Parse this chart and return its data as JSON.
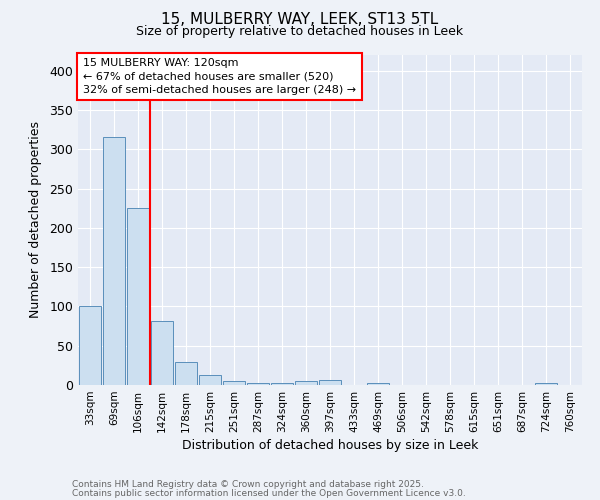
{
  "title_line1": "15, MULBERRY WAY, LEEK, ST13 5TL",
  "title_line2": "Size of property relative to detached houses in Leek",
  "xlabel": "Distribution of detached houses by size in Leek",
  "ylabel": "Number of detached properties",
  "categories": [
    "33sqm",
    "69sqm",
    "106sqm",
    "142sqm",
    "178sqm",
    "215sqm",
    "251sqm",
    "287sqm",
    "324sqm",
    "360sqm",
    "397sqm",
    "433sqm",
    "469sqm",
    "506sqm",
    "542sqm",
    "578sqm",
    "615sqm",
    "651sqm",
    "687sqm",
    "724sqm",
    "760sqm"
  ],
  "values": [
    100,
    315,
    225,
    82,
    29,
    13,
    5,
    3,
    2,
    5,
    6,
    0,
    3,
    0,
    0,
    0,
    0,
    0,
    0,
    2,
    0
  ],
  "bar_color": "#ccdff0",
  "bar_edge_color": "#5a8fbb",
  "red_line_x": 2.5,
  "annotation_text": "15 MULBERRY WAY: 120sqm\n← 67% of detached houses are smaller (520)\n32% of semi-detached houses are larger (248) →",
  "ylim": [
    0,
    420
  ],
  "yticks": [
    0,
    50,
    100,
    150,
    200,
    250,
    300,
    350,
    400
  ],
  "background_color": "#eef2f8",
  "plot_bg_color": "#e4eaf5",
  "grid_color": "#ffffff",
  "footnote_line1": "Contains HM Land Registry data © Crown copyright and database right 2025.",
  "footnote_line2": "Contains public sector information licensed under the Open Government Licence v3.0."
}
